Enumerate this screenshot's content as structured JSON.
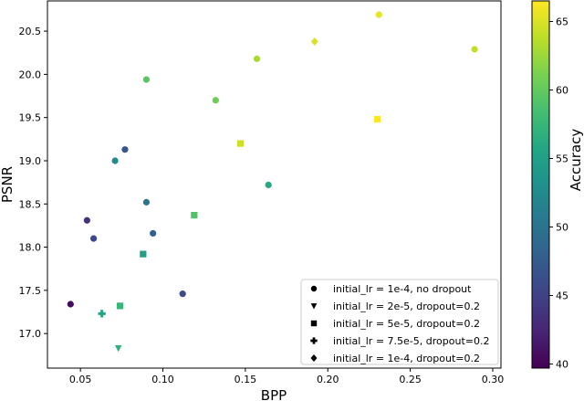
{
  "chart_data": {
    "type": "scatter",
    "xlabel": "BPP",
    "ylabel": "PSNR",
    "xlim": [
      0.03,
      0.305
    ],
    "ylim": [
      16.6,
      20.85
    ],
    "x_ticks": [
      0.05,
      0.1,
      0.15,
      0.2,
      0.25,
      0.3
    ],
    "x_tick_labels": [
      "0.05",
      "0.10",
      "0.15",
      "0.20",
      "0.25",
      "0.30"
    ],
    "y_ticks": [
      17.0,
      17.5,
      18.0,
      18.5,
      19.0,
      19.5,
      20.0,
      20.5
    ],
    "y_tick_labels": [
      "17.0",
      "17.5",
      "18.0",
      "18.5",
      "19.0",
      "19.5",
      "20.0",
      "20.5"
    ],
    "grid": false,
    "legend_position": "lower-right",
    "colorbar": {
      "label": "Accuracy",
      "colormap": "viridis",
      "range": [
        39.7,
        66.5
      ],
      "ticks": [
        40,
        45,
        50,
        55,
        60,
        65
      ],
      "tick_labels": [
        "40",
        "45",
        "50",
        "55",
        "60",
        "65"
      ]
    },
    "series": [
      {
        "name": "initial_lr = 1e-4, no dropout",
        "marker": "circle",
        "points": [
          {
            "x": 0.044,
            "y": 17.34,
            "accuracy": 40.5
          },
          {
            "x": 0.054,
            "y": 18.31,
            "accuracy": 43.5
          },
          {
            "x": 0.058,
            "y": 18.1,
            "accuracy": 45.5
          },
          {
            "x": 0.071,
            "y": 19.0,
            "accuracy": 52.5
          },
          {
            "x": 0.077,
            "y": 19.13,
            "accuracy": 47.0
          },
          {
            "x": 0.09,
            "y": 19.94,
            "accuracy": 59.5
          },
          {
            "x": 0.09,
            "y": 18.52,
            "accuracy": 50.0
          },
          {
            "x": 0.094,
            "y": 18.16,
            "accuracy": 48.0
          },
          {
            "x": 0.112,
            "y": 17.46,
            "accuracy": 46.0
          },
          {
            "x": 0.132,
            "y": 19.7,
            "accuracy": 60.5
          },
          {
            "x": 0.157,
            "y": 20.18,
            "accuracy": 63.0
          },
          {
            "x": 0.164,
            "y": 18.72,
            "accuracy": 56.0
          },
          {
            "x": 0.231,
            "y": 20.69,
            "accuracy": 65.5
          },
          {
            "x": 0.289,
            "y": 20.29,
            "accuracy": 64.0
          }
        ]
      },
      {
        "name": "initial_lr = 2e-5, dropout=0.2",
        "marker": "triangle-down",
        "points": [
          {
            "x": 0.073,
            "y": 16.83,
            "accuracy": 57.0
          }
        ]
      },
      {
        "name": "initial_lr = 5e-5, dropout=0.2",
        "marker": "square",
        "points": [
          {
            "x": 0.074,
            "y": 17.32,
            "accuracy": 57.5
          },
          {
            "x": 0.088,
            "y": 17.92,
            "accuracy": 55.0
          },
          {
            "x": 0.119,
            "y": 18.37,
            "accuracy": 59.0
          },
          {
            "x": 0.147,
            "y": 19.2,
            "accuracy": 64.5
          },
          {
            "x": 0.23,
            "y": 19.48,
            "accuracy": 66.5
          }
        ]
      },
      {
        "name": "initial_lr = 7.5e-5, dropout=0.2",
        "marker": "plus",
        "points": [
          {
            "x": 0.063,
            "y": 17.23,
            "accuracy": 55.5
          }
        ]
      },
      {
        "name": "initial_lr = 1e-4, dropout=0.2",
        "marker": "diamond",
        "points": [
          {
            "x": 0.192,
            "y": 20.38,
            "accuracy": 65.0
          }
        ]
      }
    ]
  }
}
